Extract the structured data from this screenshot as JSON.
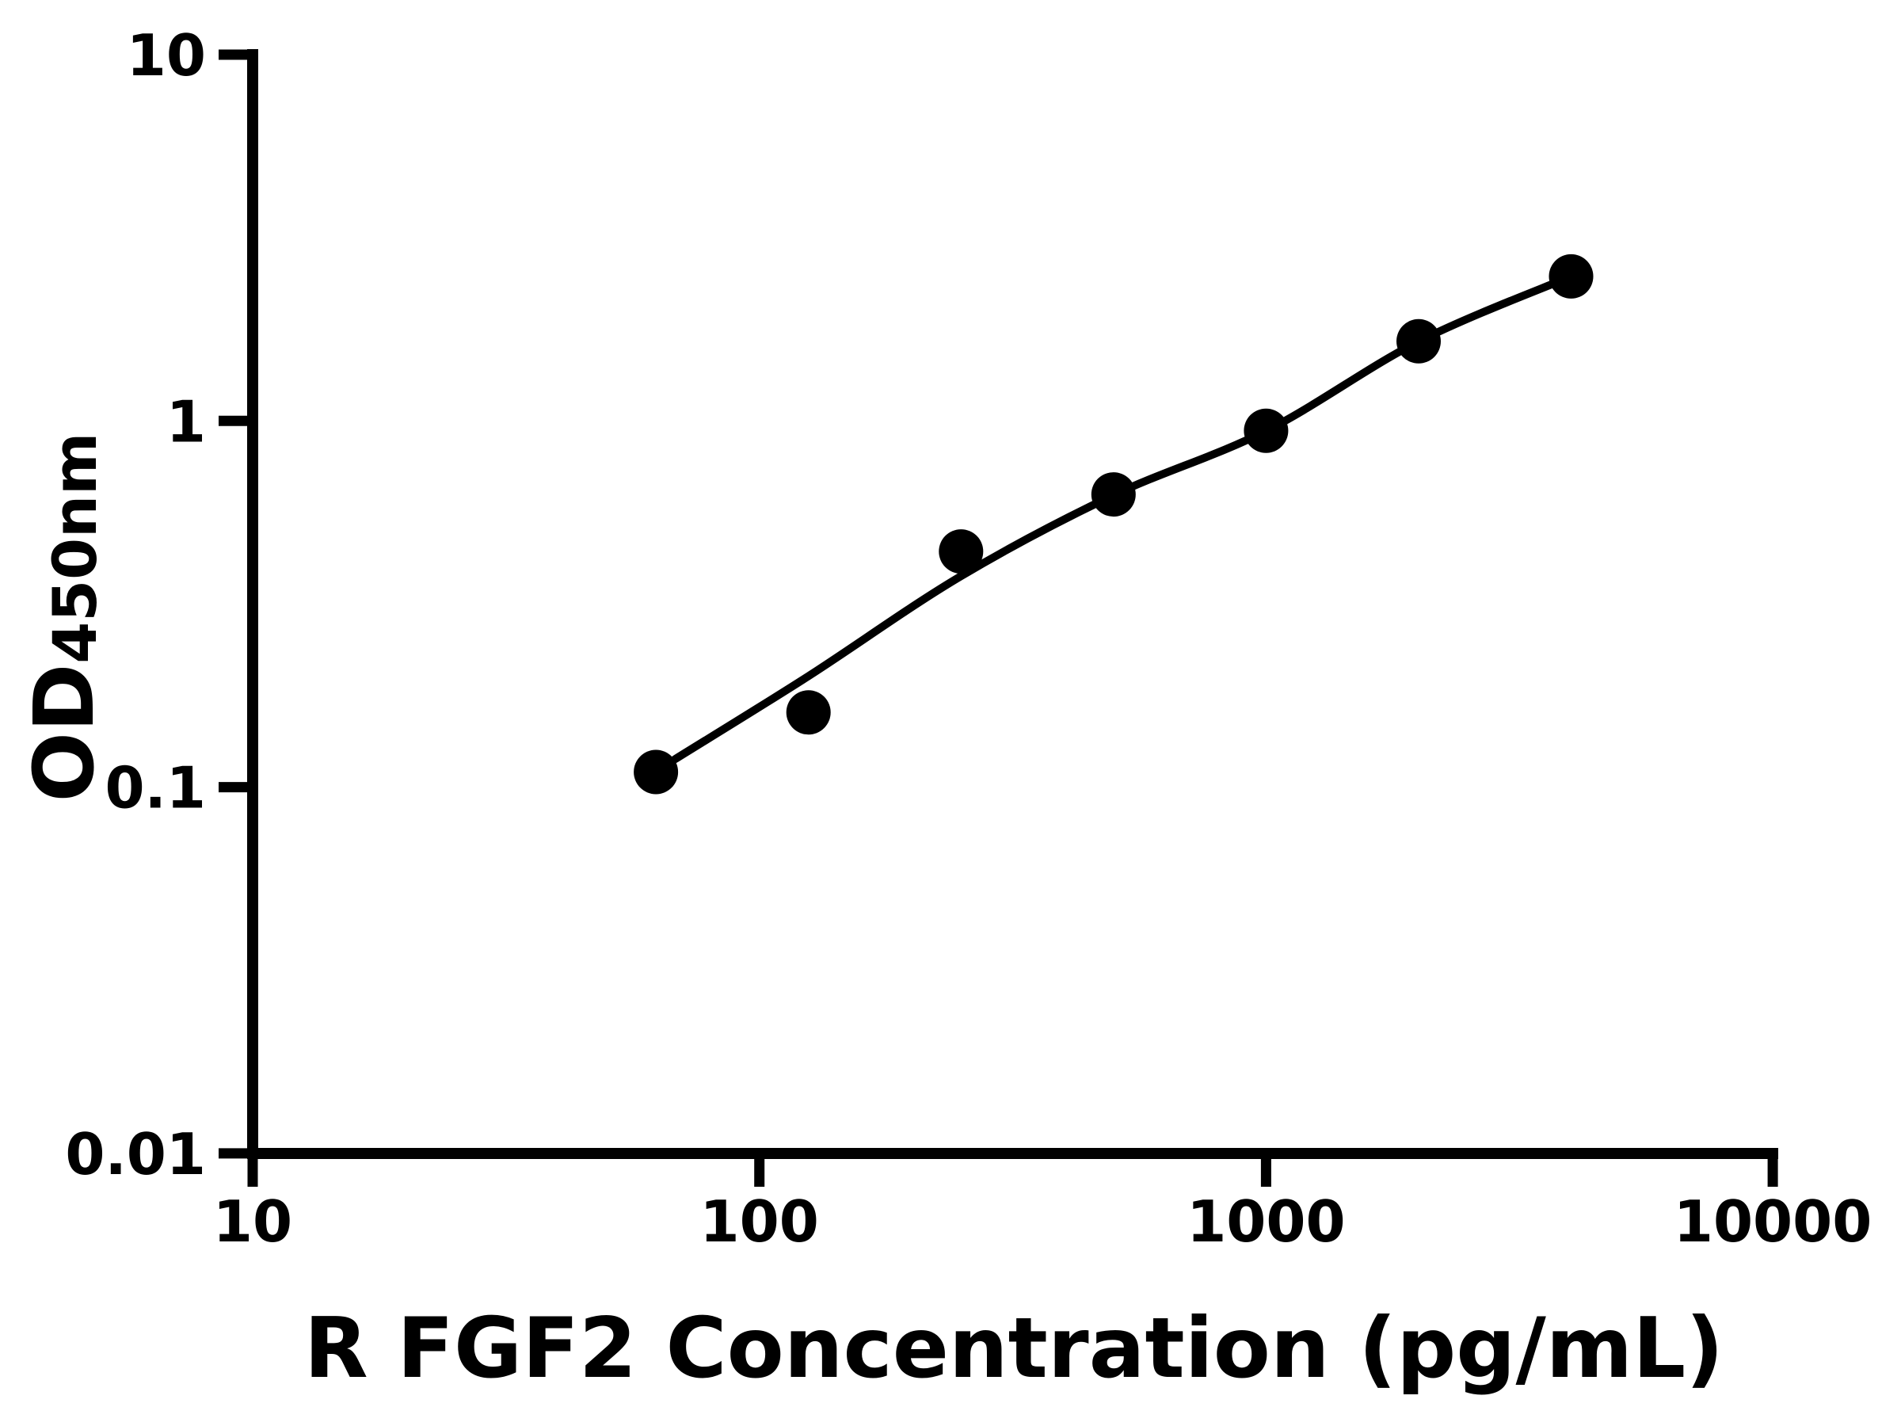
{
  "figure": {
    "background_color": "#ffffff",
    "foreground_color": "#000000"
  },
  "chart_data": {
    "type": "scatter",
    "title": "",
    "xlabel": "R FGF2 Concentration (pg/mL)",
    "ylabel": "OD",
    "ylabel_sub": "450nm",
    "x_scale": "log",
    "y_scale": "log",
    "xlim": [
      10,
      10000
    ],
    "ylim": [
      0.01,
      10
    ],
    "x_ticks": [
      10,
      100,
      1000,
      10000
    ],
    "x_tick_labels": [
      "10",
      "100",
      "1000",
      "10000"
    ],
    "y_ticks": [
      10,
      1,
      0.1,
      0.01
    ],
    "y_tick_labels": [
      "10",
      "1",
      "0.1",
      "0.01"
    ],
    "grid": false,
    "legend": null,
    "series": [
      {
        "type": "scatter",
        "marker": "circle",
        "color": "#000000",
        "x": [
          62.5,
          125,
          250,
          500,
          1000,
          2000,
          4000
        ],
        "y": [
          0.11,
          0.16,
          0.44,
          0.63,
          0.94,
          1.65,
          2.48
        ]
      }
    ],
    "fit_curve": {
      "type": "smooth-line",
      "color": "#000000",
      "x": [
        68,
        125,
        250,
        500,
        1000,
        2000,
        4000
      ],
      "y": [
        0.119,
        0.201,
        0.377,
        0.627,
        0.939,
        1.648,
        2.48
      ]
    }
  }
}
